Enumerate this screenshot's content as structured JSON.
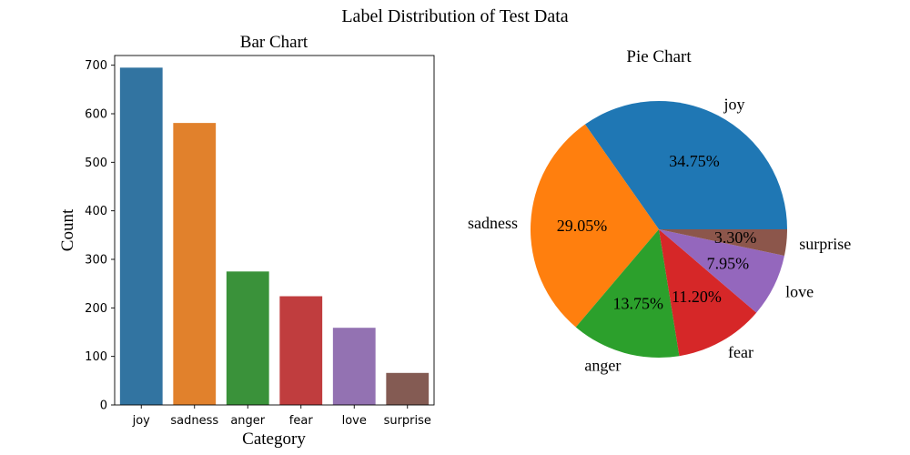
{
  "figure_title": "Label Distribution of Test Data",
  "chart_data": [
    {
      "type": "bar",
      "title": "Bar Chart",
      "xlabel": "Category",
      "ylabel": "Count",
      "categories": [
        "joy",
        "sadness",
        "anger",
        "fear",
        "love",
        "surprise"
      ],
      "values": [
        695,
        581,
        275,
        224,
        159,
        66
      ],
      "ylim": [
        0,
        720
      ],
      "yticks": [
        0,
        100,
        200,
        300,
        400,
        500,
        600,
        700
      ],
      "colors": [
        "#3274a1",
        "#e1812c",
        "#3a923a",
        "#c03d3e",
        "#9372b2",
        "#845b53"
      ],
      "grid": false
    },
    {
      "type": "pie",
      "title": "Pie Chart",
      "labels": [
        "joy",
        "sadness",
        "anger",
        "fear",
        "love",
        "surprise"
      ],
      "values": [
        34.75,
        29.05,
        13.75,
        11.2,
        7.95,
        3.3
      ],
      "pct_labels": [
        "34.75%",
        "29.05%",
        "13.75%",
        "11.20%",
        "7.95%",
        "3.30%"
      ],
      "colors": [
        "#1f77b4",
        "#ff7f0e",
        "#2ca02c",
        "#d62728",
        "#9467bd",
        "#8c564b"
      ],
      "start_angle_deg": 0,
      "direction": "counterclockwise"
    }
  ]
}
